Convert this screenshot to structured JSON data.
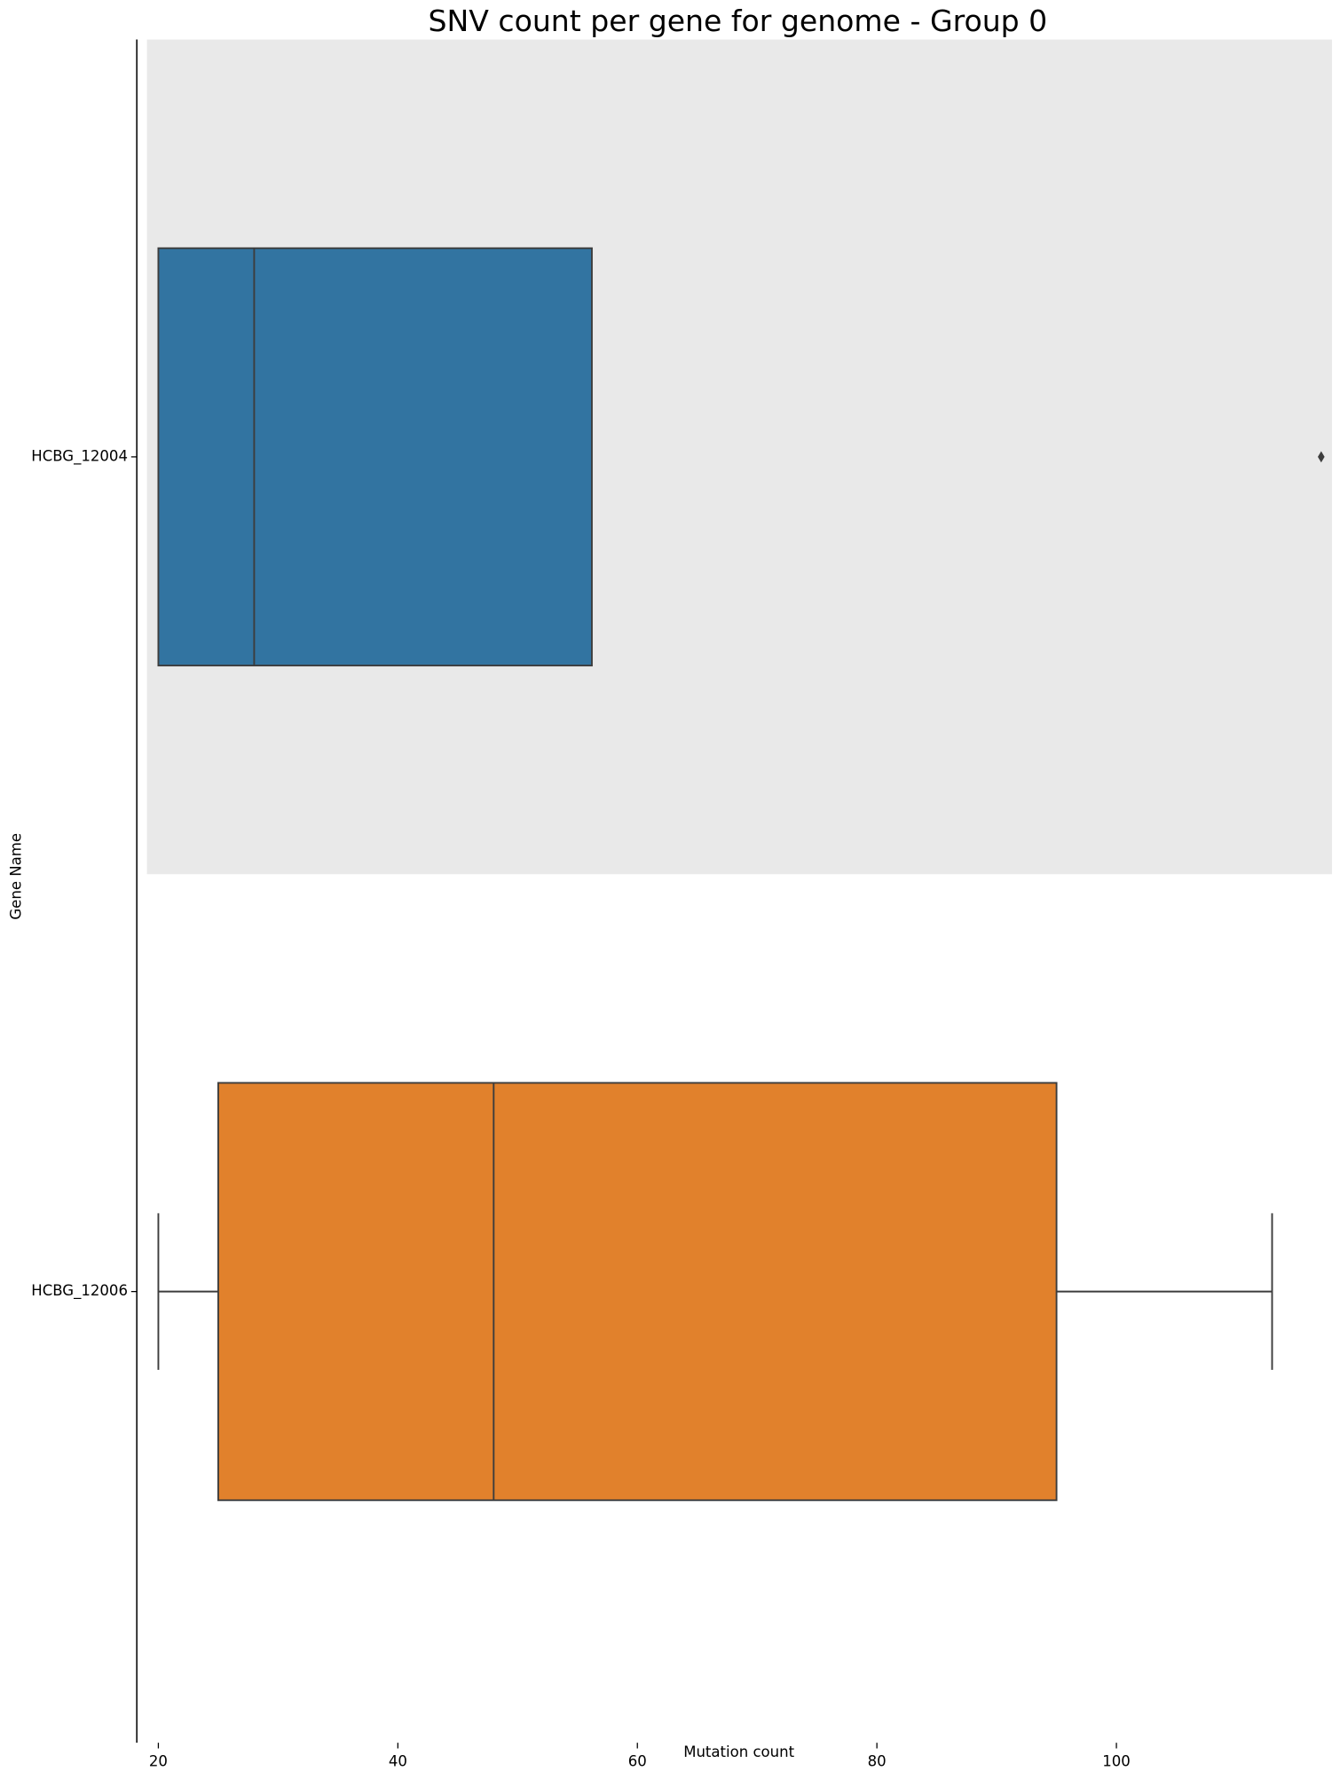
{
  "chart_data": {
    "type": "boxplot",
    "orientation": "horizontal",
    "title": "SNV count per gene for genome - Group 0",
    "x_label": "Mutation count",
    "y_label": "Gene Name",
    "categories": [
      "HCBG_12004",
      "HCBG_12006"
    ],
    "boxes": [
      {
        "whislo": 20,
        "q1": 20,
        "median": 28,
        "q3": 56.2,
        "whishi": 56.2,
        "fliers": [
          117.1
        ],
        "color": "#3274a1"
      },
      {
        "whislo": 20,
        "q1": 25,
        "median": 48,
        "q3": 95,
        "whishi": 113,
        "fliers": [],
        "color": "#e1812c"
      }
    ],
    "xlim": [
      19.05,
      118.0
    ],
    "xticks": [
      20,
      40,
      60,
      80,
      100
    ]
  }
}
